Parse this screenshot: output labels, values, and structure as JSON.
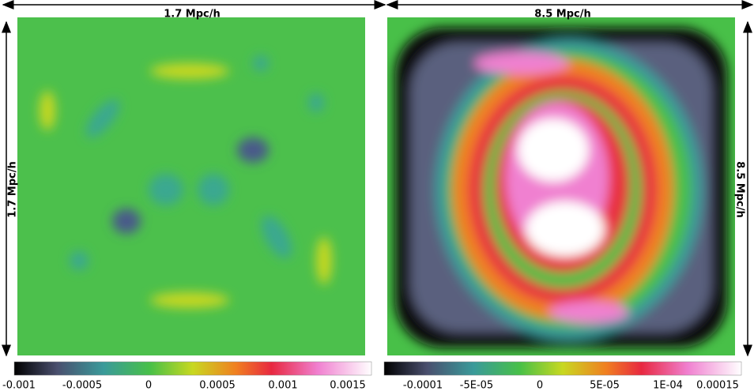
{
  "panels": [
    {
      "top_label": "1.7 Mpc/h",
      "side_label": "1.7 Mpc/h",
      "colorbar_ticks": [
        "-0.001",
        "-0.0005",
        "0",
        "0.0005",
        "0.001",
        "0.0015"
      ]
    },
    {
      "top_label": "8.5 Mpc/h",
      "side_label": "8.5 Mpc/h",
      "colorbar_ticks": [
        "-0.0001",
        "-5E-05",
        "0",
        "5E-05",
        "1E-04",
        "0.00015"
      ]
    }
  ]
}
